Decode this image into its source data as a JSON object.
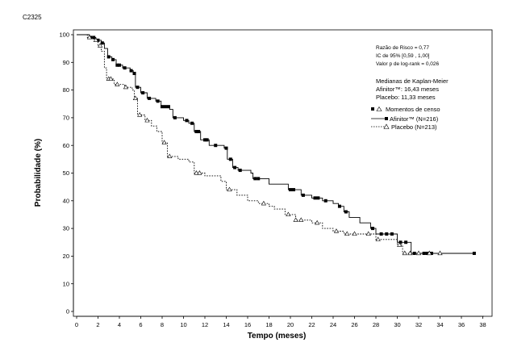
{
  "figure_code": "C2325",
  "chart_data": {
    "type": "line",
    "title": "",
    "xlabel": "Tempo (meses)",
    "ylabel": "Probabilidade (%)",
    "xlim": [
      0,
      38
    ],
    "ylim": [
      0,
      100
    ],
    "xticks": [
      0,
      2,
      4,
      6,
      8,
      10,
      12,
      14,
      16,
      18,
      20,
      22,
      24,
      26,
      28,
      30,
      32,
      34,
      36,
      38
    ],
    "yticks": [
      0,
      10,
      20,
      30,
      40,
      50,
      60,
      70,
      80,
      90,
      100
    ],
    "grid": false,
    "legend_position": "top-right",
    "statistics": {
      "hazard_ratio": "Razão de Risco = 0,77",
      "ci": "IC de 95% [0,59 , 1,00]",
      "p_value": "Valor p de log-rank = 0,026"
    },
    "medians": {
      "title": "Medianas de Kaplan-Meier",
      "afinitor": "Afinitor™: 16,43 meses",
      "placebo": "Placebo: 11,33 meses"
    },
    "legend": {
      "censor": "Momentos de censo",
      "afinitor": "Afinitor™ (N=216)",
      "placebo": "Placebo (N=213)"
    },
    "series": [
      {
        "name": "Afinitor™ (N=216)",
        "style": "solid",
        "marker": "filled-square",
        "color": "#000000",
        "points": [
          [
            0,
            100
          ],
          [
            1.2,
            99
          ],
          [
            1.8,
            98
          ],
          [
            2.3,
            97
          ],
          [
            2.6,
            95
          ],
          [
            2.9,
            92
          ],
          [
            3.3,
            91
          ],
          [
            3.7,
            89
          ],
          [
            4.3,
            88
          ],
          [
            5.0,
            87
          ],
          [
            5.3,
            86
          ],
          [
            5.5,
            81
          ],
          [
            6.0,
            79
          ],
          [
            6.6,
            77
          ],
          [
            7.4,
            76
          ],
          [
            7.9,
            74
          ],
          [
            8.7,
            73
          ],
          [
            9.0,
            70
          ],
          [
            10.0,
            69
          ],
          [
            10.5,
            68
          ],
          [
            11.0,
            65
          ],
          [
            11.6,
            62
          ],
          [
            12.4,
            60
          ],
          [
            13.8,
            59
          ],
          [
            14.1,
            55
          ],
          [
            14.6,
            52
          ],
          [
            15.1,
            51
          ],
          [
            16.3,
            50
          ],
          [
            16.5,
            48
          ],
          [
            18.0,
            46
          ],
          [
            19.8,
            44
          ],
          [
            21.0,
            42
          ],
          [
            22.0,
            41
          ],
          [
            23.0,
            40
          ],
          [
            24.0,
            39
          ],
          [
            24.5,
            38
          ],
          [
            25.0,
            36
          ],
          [
            25.5,
            34
          ],
          [
            26.5,
            32
          ],
          [
            27.5,
            30
          ],
          [
            28.0,
            28
          ],
          [
            30.0,
            25
          ],
          [
            31.0,
            25
          ],
          [
            31.3,
            21
          ],
          [
            37.2,
            21
          ]
        ],
        "censor_x": [
          1.3,
          1.6,
          2.0,
          2.4,
          3.0,
          3.4,
          3.8,
          4.0,
          4.5,
          5.1,
          5.4,
          5.7,
          6.2,
          6.8,
          7.6,
          8.0,
          8.3,
          8.6,
          9.2,
          10.3,
          10.8,
          11.2,
          11.4,
          12.0,
          12.2,
          13.0,
          14.0,
          14.4,
          14.8,
          15.3,
          16.7,
          17.0,
          20.0,
          20.3,
          21.2,
          22.3,
          22.6,
          23.3,
          24.6,
          25.2,
          27.7,
          28.5,
          29.0,
          29.5,
          30.3,
          30.8,
          31.6,
          32.5,
          32.8,
          33.2,
          37.2
        ]
      },
      {
        "name": "Placebo (N=213)",
        "style": "dotted",
        "marker": "open-triangle",
        "color": "#000000",
        "points": [
          [
            0,
            100
          ],
          [
            1.0,
            99
          ],
          [
            1.6,
            98
          ],
          [
            2.0,
            96
          ],
          [
            2.3,
            94
          ],
          [
            2.6,
            88
          ],
          [
            2.8,
            84
          ],
          [
            3.5,
            82
          ],
          [
            4.5,
            81
          ],
          [
            5.2,
            80
          ],
          [
            5.4,
            77
          ],
          [
            5.7,
            71
          ],
          [
            6.4,
            69
          ],
          [
            7.0,
            67
          ],
          [
            7.5,
            65
          ],
          [
            8.0,
            61
          ],
          [
            8.5,
            56
          ],
          [
            9.5,
            55
          ],
          [
            10.5,
            54
          ],
          [
            11.0,
            50
          ],
          [
            12.0,
            49
          ],
          [
            13.5,
            47
          ],
          [
            14.0,
            44
          ],
          [
            15.0,
            42
          ],
          [
            16.0,
            40
          ],
          [
            17.0,
            39
          ],
          [
            18.0,
            38
          ],
          [
            18.5,
            37
          ],
          [
            19.5,
            35
          ],
          [
            20.5,
            33
          ],
          [
            22.0,
            32
          ],
          [
            23.0,
            30
          ],
          [
            24.0,
            29
          ],
          [
            25.0,
            28
          ],
          [
            27.0,
            28
          ],
          [
            28.0,
            26
          ],
          [
            30.0,
            24
          ],
          [
            30.5,
            21
          ],
          [
            34.0,
            21
          ]
        ],
        "censor_x": [
          1.2,
          1.8,
          2.2,
          3.0,
          3.2,
          3.8,
          4.6,
          5.5,
          5.9,
          6.6,
          8.2,
          8.7,
          11.2,
          11.5,
          14.3,
          17.5,
          19.8,
          20.5,
          21.0,
          22.5,
          24.3,
          25.3,
          26.0,
          27.3,
          28.2,
          30.2,
          30.7,
          31.2,
          32.0,
          33.0,
          34.0
        ]
      }
    ]
  }
}
